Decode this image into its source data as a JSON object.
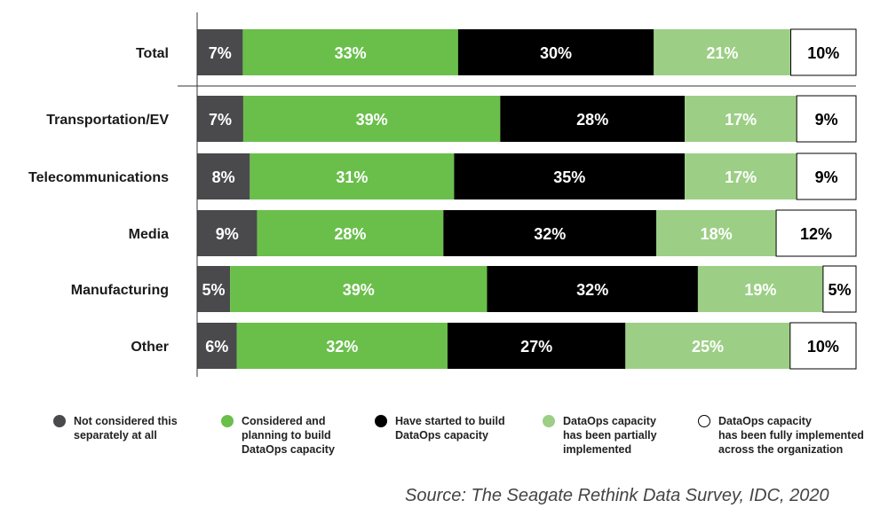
{
  "chart_data": {
    "type": "bar",
    "orientation": "horizontal",
    "stacked": true,
    "categories": [
      "Total",
      "Transportation/EV",
      "Telecommunications",
      "Media",
      "Manufacturing",
      "Other"
    ],
    "series": [
      {
        "name": "Not considered this separately at all",
        "color": "#4a4a4c",
        "label_color": "#ffffff",
        "values": [
          7,
          7,
          8,
          9,
          5,
          6
        ]
      },
      {
        "name": "Considered and planning to build DataOps capacity",
        "color": "#6abf4b",
        "label_color": "#ffffff",
        "values": [
          33,
          39,
          31,
          28,
          39,
          32
        ]
      },
      {
        "name": "Have started to build DataOps capacity",
        "color": "#000000",
        "label_color": "#ffffff",
        "values": [
          30,
          28,
          35,
          32,
          32,
          27
        ]
      },
      {
        "name": "DataOps capacity has been partially implemented",
        "color": "#9ccf85",
        "label_color": "#ffffff",
        "values": [
          21,
          17,
          17,
          18,
          19,
          25
        ]
      },
      {
        "name": "DataOps capacity has been fully implemented across the organization",
        "color": "#ffffff",
        "label_color": "#000000",
        "values": [
          10,
          9,
          9,
          12,
          5,
          10
        ]
      }
    ],
    "value_suffix": "%",
    "grid": false,
    "legend_position": "bottom"
  },
  "legend": [
    {
      "label": "Not considered this\nseparately at all",
      "color": "#4a4a4c"
    },
    {
      "label": "Considered and\nplanning to build\nDataOps capacity",
      "color": "#6abf4b"
    },
    {
      "label": "Have started to build\nDataOps capacity",
      "color": "#000000"
    },
    {
      "label": "DataOps capacity\nhas been partially\nimplemented",
      "color": "#9ccf85"
    },
    {
      "label": "DataOps capacity\nhas been fully implemented\nacross the organization",
      "color": "#ffffff"
    }
  ],
  "source": "Source: The Seagate Rethink Data Survey, IDC, 2020"
}
